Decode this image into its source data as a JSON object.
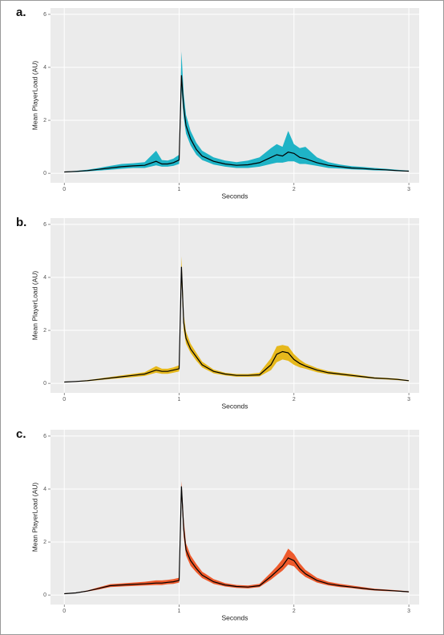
{
  "chart_data": [
    {
      "type": "band-line",
      "label": "a.",
      "xlabel": "Seconds",
      "ylabel": "Mean PlayerLoad (AU)",
      "x": [
        0,
        0.1,
        0.2,
        0.3,
        0.4,
        0.5,
        0.6,
        0.7,
        0.8,
        0.85,
        0.9,
        0.95,
        1.0,
        1.02,
        1.04,
        1.06,
        1.1,
        1.15,
        1.2,
        1.3,
        1.4,
        1.5,
        1.6,
        1.7,
        1.8,
        1.85,
        1.9,
        1.95,
        2.0,
        2.05,
        2.1,
        2.2,
        2.3,
        2.4,
        2.5,
        2.6,
        2.7,
        2.8,
        2.9,
        3.0
      ],
      "values": [
        0.05,
        0.07,
        0.1,
        0.15,
        0.2,
        0.25,
        0.28,
        0.3,
        0.45,
        0.35,
        0.35,
        0.4,
        0.5,
        3.7,
        2.5,
        1.8,
        1.3,
        0.9,
        0.65,
        0.45,
        0.35,
        0.3,
        0.32,
        0.4,
        0.6,
        0.7,
        0.65,
        0.8,
        0.75,
        0.6,
        0.55,
        0.4,
        0.3,
        0.25,
        0.2,
        0.18,
        0.15,
        0.13,
        0.1,
        0.08
      ],
      "lower": [
        0.04,
        0.05,
        0.07,
        0.1,
        0.13,
        0.17,
        0.2,
        0.2,
        0.3,
        0.25,
        0.25,
        0.28,
        0.35,
        3.2,
        2.1,
        1.5,
        1.05,
        0.7,
        0.5,
        0.33,
        0.25,
        0.2,
        0.2,
        0.25,
        0.35,
        0.4,
        0.4,
        0.45,
        0.45,
        0.35,
        0.35,
        0.28,
        0.2,
        0.18,
        0.15,
        0.13,
        0.11,
        0.1,
        0.08,
        0.06
      ],
      "upper": [
        0.06,
        0.09,
        0.13,
        0.2,
        0.28,
        0.35,
        0.38,
        0.42,
        0.85,
        0.5,
        0.48,
        0.55,
        0.7,
        4.6,
        3.0,
        2.2,
        1.6,
        1.15,
        0.85,
        0.6,
        0.48,
        0.42,
        0.48,
        0.6,
        0.95,
        1.1,
        1.0,
        1.6,
        1.1,
        0.95,
        1.0,
        0.6,
        0.42,
        0.33,
        0.27,
        0.24,
        0.2,
        0.17,
        0.13,
        0.1
      ],
      "line_color": "#000000",
      "band_color": "#1fb3c6",
      "xlim": [
        -0.12,
        3.09
      ],
      "ylim": [
        -0.36,
        6.24
      ],
      "xticks": [
        0,
        1,
        2,
        3
      ],
      "yticks": [
        0,
        2,
        4,
        6
      ],
      "grid": true
    },
    {
      "type": "band-line",
      "label": "b.",
      "xlabel": "Seconds",
      "ylabel": "Mean PlayerLoad (AU)",
      "x": [
        0,
        0.1,
        0.2,
        0.3,
        0.4,
        0.5,
        0.6,
        0.7,
        0.8,
        0.85,
        0.9,
        0.95,
        1.0,
        1.02,
        1.04,
        1.06,
        1.1,
        1.15,
        1.2,
        1.3,
        1.4,
        1.5,
        1.6,
        1.7,
        1.8,
        1.85,
        1.9,
        1.95,
        2.0,
        2.05,
        2.1,
        2.2,
        2.3,
        2.4,
        2.5,
        2.6,
        2.7,
        2.8,
        2.9,
        3.0
      ],
      "values": [
        0.05,
        0.07,
        0.1,
        0.15,
        0.2,
        0.25,
        0.3,
        0.35,
        0.5,
        0.45,
        0.45,
        0.5,
        0.55,
        4.4,
        2.3,
        1.7,
        1.3,
        1.0,
        0.7,
        0.45,
        0.35,
        0.3,
        0.3,
        0.32,
        0.7,
        1.1,
        1.2,
        1.15,
        0.9,
        0.75,
        0.65,
        0.5,
        0.4,
        0.35,
        0.3,
        0.25,
        0.2,
        0.18,
        0.15,
        0.1
      ],
      "lower": [
        0.04,
        0.06,
        0.08,
        0.12,
        0.16,
        0.2,
        0.24,
        0.28,
        0.4,
        0.36,
        0.36,
        0.4,
        0.45,
        3.9,
        2.0,
        1.5,
        1.15,
        0.85,
        0.6,
        0.38,
        0.3,
        0.25,
        0.25,
        0.26,
        0.5,
        0.8,
        0.9,
        0.85,
        0.7,
        0.6,
        0.55,
        0.42,
        0.34,
        0.3,
        0.25,
        0.21,
        0.17,
        0.15,
        0.12,
        0.08
      ],
      "upper": [
        0.06,
        0.08,
        0.12,
        0.18,
        0.24,
        0.3,
        0.36,
        0.42,
        0.65,
        0.55,
        0.55,
        0.6,
        0.68,
        4.8,
        2.6,
        1.95,
        1.5,
        1.15,
        0.82,
        0.52,
        0.4,
        0.35,
        0.35,
        0.4,
        0.95,
        1.4,
        1.45,
        1.4,
        1.1,
        0.9,
        0.75,
        0.58,
        0.46,
        0.4,
        0.35,
        0.29,
        0.23,
        0.21,
        0.18,
        0.12
      ],
      "line_color": "#000000",
      "band_color": "#e6b81c",
      "xlim": [
        -0.12,
        3.09
      ],
      "ylim": [
        -0.36,
        6.24
      ],
      "xticks": [
        0,
        1,
        2,
        3
      ],
      "yticks": [
        0,
        2,
        4,
        6
      ],
      "grid": true
    },
    {
      "type": "band-line",
      "label": "c.",
      "xlabel": "Seconds",
      "ylabel": "Mean PlayerLoad (AU)",
      "x": [
        0,
        0.1,
        0.2,
        0.3,
        0.4,
        0.5,
        0.6,
        0.7,
        0.8,
        0.85,
        0.9,
        0.95,
        1.0,
        1.02,
        1.04,
        1.06,
        1.1,
        1.15,
        1.2,
        1.3,
        1.4,
        1.5,
        1.6,
        1.7,
        1.8,
        1.85,
        1.9,
        1.95,
        2.0,
        2.05,
        2.1,
        2.2,
        2.3,
        2.4,
        2.5,
        2.6,
        2.7,
        2.8,
        2.9,
        3.0
      ],
      "values": [
        0.05,
        0.08,
        0.15,
        0.25,
        0.35,
        0.38,
        0.4,
        0.42,
        0.45,
        0.45,
        0.48,
        0.5,
        0.55,
        4.1,
        2.5,
        1.7,
        1.3,
        1.0,
        0.75,
        0.5,
        0.38,
        0.32,
        0.3,
        0.35,
        0.7,
        0.9,
        1.1,
        1.4,
        1.3,
        1.0,
        0.8,
        0.55,
        0.42,
        0.35,
        0.3,
        0.25,
        0.2,
        0.18,
        0.15,
        0.12
      ],
      "lower": [
        0.04,
        0.07,
        0.13,
        0.21,
        0.3,
        0.32,
        0.34,
        0.36,
        0.38,
        0.38,
        0.41,
        0.42,
        0.47,
        3.8,
        2.2,
        1.5,
        1.1,
        0.85,
        0.64,
        0.42,
        0.32,
        0.27,
        0.25,
        0.3,
        0.58,
        0.75,
        0.92,
        1.15,
        1.08,
        0.85,
        0.68,
        0.47,
        0.36,
        0.3,
        0.26,
        0.21,
        0.17,
        0.15,
        0.13,
        0.1
      ],
      "upper": [
        0.06,
        0.09,
        0.17,
        0.29,
        0.41,
        0.44,
        0.47,
        0.5,
        0.55,
        0.55,
        0.57,
        0.6,
        0.65,
        4.3,
        2.85,
        1.95,
        1.5,
        1.17,
        0.88,
        0.6,
        0.45,
        0.38,
        0.36,
        0.42,
        0.85,
        1.08,
        1.35,
        1.75,
        1.55,
        1.2,
        0.95,
        0.65,
        0.5,
        0.42,
        0.36,
        0.3,
        0.24,
        0.21,
        0.18,
        0.14
      ],
      "line_color": "#000000",
      "band_color": "#ee5a2c",
      "xlim": [
        -0.12,
        3.09
      ],
      "ylim": [
        -0.36,
        6.24
      ],
      "xticks": [
        0,
        1,
        2,
        3
      ],
      "yticks": [
        0,
        2,
        4,
        6
      ],
      "grid": true
    }
  ]
}
